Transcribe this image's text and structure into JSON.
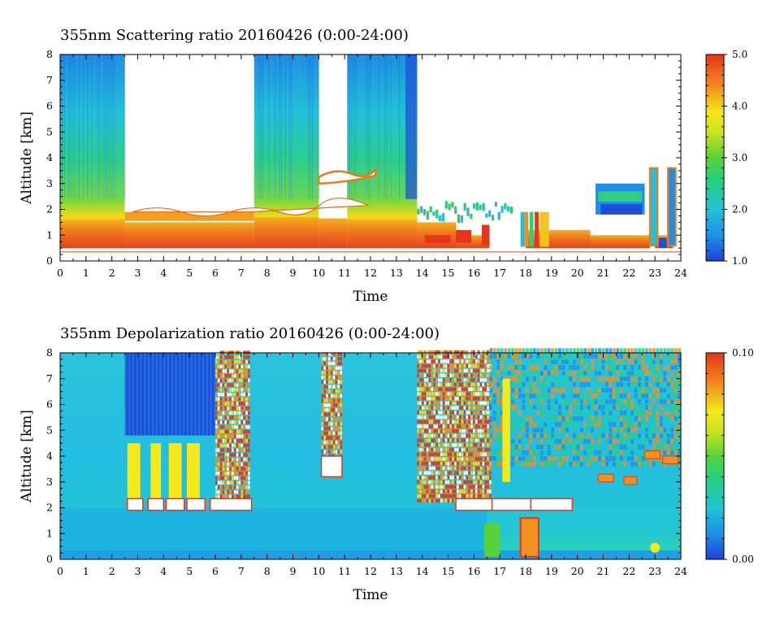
{
  "chart_data": [
    {
      "type": "heatmap",
      "title": "355nm Scattering ratio  20160426 (0:00-24:00)",
      "xlabel": "Time",
      "ylabel": "Altitude [km]",
      "xlim": [
        0,
        24
      ],
      "ylim": [
        0,
        8
      ],
      "x_ticks": [
        "0",
        "1",
        "2",
        "3",
        "4",
        "5",
        "6",
        "7",
        "8",
        "9",
        "10",
        "11",
        "12",
        "13",
        "14",
        "15",
        "16",
        "17",
        "18",
        "19",
        "20",
        "21",
        "22",
        "23",
        "24"
      ],
      "y_ticks": [
        "0",
        "1",
        "2",
        "3",
        "4",
        "5",
        "6",
        "7",
        "8"
      ],
      "colorbar": {
        "range": [
          1.0,
          5.0
        ],
        "tick_labels": [
          "5.0",
          "4.0",
          "3.0",
          "2.0",
          "1.0"
        ],
        "tick_values": [
          5.0,
          4.0,
          3.0,
          2.0,
          1.0
        ]
      },
      "features": {
        "surface_line_altitude_km": 0.35,
        "data_bottom_km": 0.5,
        "profile_columns_hours": [
          [
            0,
            2.5
          ],
          [
            7.5,
            10
          ],
          [
            11.1,
            13.8
          ]
        ],
        "white_gap_hours": [
          [
            2.5,
            7.5
          ],
          [
            10,
            11.1
          ],
          [
            13.8,
            24
          ]
        ],
        "boundary_layer_top_km": 1.7,
        "cloud_base_km": 2.0,
        "upper_layer_km": [
          3.3,
          3.5
        ]
      }
    },
    {
      "type": "heatmap",
      "title": "355nm Depolarization ratio  20160426 (0:00-24:00)",
      "xlabel": "Time",
      "ylabel": "Altitude [km]",
      "xlim": [
        0,
        24
      ],
      "ylim": [
        0,
        8
      ],
      "x_ticks": [
        "0",
        "1",
        "2",
        "3",
        "4",
        "5",
        "6",
        "7",
        "8",
        "9",
        "10",
        "11",
        "12",
        "13",
        "14",
        "15",
        "16",
        "17",
        "18",
        "19",
        "20",
        "21",
        "22",
        "23",
        "24"
      ],
      "y_ticks": [
        "0",
        "1",
        "2",
        "3",
        "4",
        "5",
        "6",
        "7",
        "8"
      ],
      "colorbar": {
        "range": [
          0.0,
          0.1
        ],
        "tick_labels": [
          "0.10",
          "0.00"
        ],
        "tick_values": [
          0.1,
          0.0
        ]
      },
      "features": {
        "high_depol_columns_hours": [
          [
            2.6,
            3.1
          ],
          [
            3.5,
            3.9
          ],
          [
            4.2,
            4.7
          ],
          [
            4.9,
            5.4
          ]
        ],
        "high_depol_altitude_km": [
          2.0,
          4.5
        ],
        "noise_regions_hours": [
          [
            6,
            7.3
          ],
          [
            10.1,
            10.9
          ],
          [
            13.8,
            16.6
          ]
        ],
        "cloud_base_km": 2.0
      }
    }
  ]
}
